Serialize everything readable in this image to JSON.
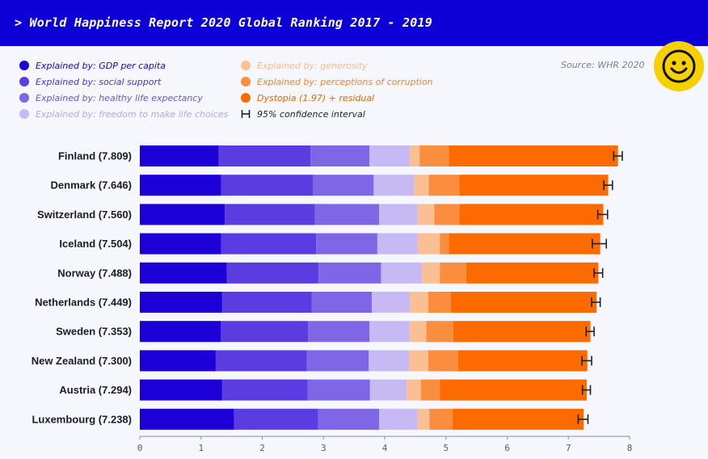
{
  "header": {
    "title": "> World Happiness Report 2020 Global Ranking 2017 - 2019"
  },
  "source": "Source: WHR 2020",
  "smiley": {
    "icon": "smiley-face-icon",
    "color": "#f7d000"
  },
  "legend": [
    {
      "label": "Explained by: GDP per capita",
      "color": "#1d00d8",
      "text_color": "#1d00d8"
    },
    {
      "label": "Explained by: social support",
      "color": "#5a3ce0",
      "text_color": "#4a2fd8"
    },
    {
      "label": "Explained by: healthy life expectancy",
      "color": "#7f66e6",
      "text_color": "#6a52e0"
    },
    {
      "label": "Explained by: freedom to make life choices",
      "color": "#c7baf4",
      "text_color": "#b3a6ef"
    },
    {
      "label": "Explained by: generosity",
      "color": "#fbbf94",
      "text_color": "#f8b98a"
    },
    {
      "label": "Explained by: perceptions of corruption",
      "color": "#fb8e3e",
      "text_color": "#f7802a"
    },
    {
      "label": "Dystopia (1.97) + residual",
      "color": "#fc6a00",
      "text_color": "#f06400"
    },
    {
      "label": "95% confidence interval",
      "color": "#222222",
      "text_color": "#222222",
      "icon": "confidence-interval-icon"
    }
  ],
  "chart_data": {
    "type": "bar",
    "orientation": "horizontal",
    "stacked": true,
    "title": "World Happiness Report 2020 Global Ranking 2017 - 2019",
    "xlim": [
      0,
      8
    ],
    "xticks": [
      "0",
      "1",
      "2",
      "3",
      "4",
      "5",
      "6",
      "7",
      "8"
    ],
    "categories": [
      "Finland (7.809)",
      "Denmark (7.646)",
      "Switzerland (7.560)",
      "Iceland (7.504)",
      "Norway (7.488)",
      "Netherlands (7.449)",
      "Sweden (7.353)",
      "New Zealand (7.300)",
      "Austria (7.294)",
      "Luxembourg (7.238)"
    ],
    "series": [
      {
        "name": "Explained by: GDP per capita",
        "color": "#1d00d8",
        "values": [
          1.29,
          1.33,
          1.39,
          1.33,
          1.42,
          1.34,
          1.32,
          1.24,
          1.34,
          1.54
        ]
      },
      {
        "name": "Explained by: social support",
        "color": "#5a3ce0",
        "values": [
          1.5,
          1.5,
          1.47,
          1.55,
          1.5,
          1.47,
          1.43,
          1.49,
          1.4,
          1.37
        ]
      },
      {
        "name": "Explained by: healthy life expectancy",
        "color": "#7f66e6",
        "values": [
          0.96,
          0.99,
          1.05,
          1.0,
          1.02,
          0.98,
          1.0,
          1.01,
          1.02,
          1.0
        ]
      },
      {
        "name": "Explained by: freedom to make life choices",
        "color": "#c7baf4",
        "values": [
          0.66,
          0.66,
          0.63,
          0.66,
          0.67,
          0.62,
          0.66,
          0.66,
          0.6,
          0.63
        ]
      },
      {
        "name": "Explained by: generosity",
        "color": "#fbbf94",
        "values": [
          0.16,
          0.24,
          0.27,
          0.36,
          0.29,
          0.3,
          0.27,
          0.31,
          0.23,
          0.19
        ]
      },
      {
        "name": "Explained by: perceptions of corruption",
        "color": "#fb8e3e",
        "values": [
          0.48,
          0.5,
          0.41,
          0.15,
          0.43,
          0.37,
          0.44,
          0.49,
          0.31,
          0.38
        ]
      },
      {
        "name": "Dystopia (1.97) + residual",
        "color": "#fc6a00",
        "values": [
          2.76,
          2.43,
          2.35,
          2.47,
          2.16,
          2.38,
          2.24,
          2.11,
          2.4,
          2.14
        ]
      }
    ],
    "totals": [
      7.809,
      7.646,
      7.56,
      7.504,
      7.488,
      7.449,
      7.353,
      7.3,
      7.294,
      7.238
    ],
    "ci_low": [
      7.74,
      7.58,
      7.48,
      7.39,
      7.42,
      7.38,
      7.29,
      7.22,
      7.23,
      7.16
    ],
    "ci_high": [
      7.88,
      7.72,
      7.64,
      7.62,
      7.56,
      7.52,
      7.42,
      7.38,
      7.36,
      7.32
    ]
  }
}
